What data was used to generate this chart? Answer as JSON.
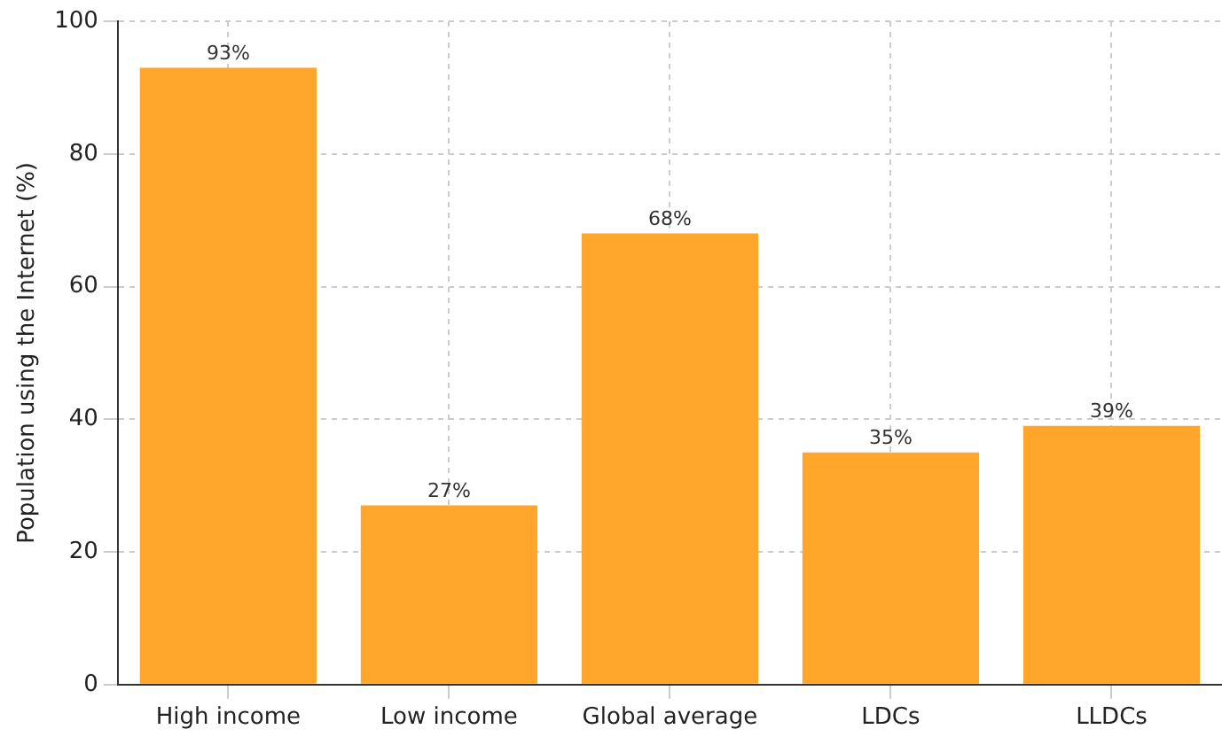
{
  "chart_data": {
    "type": "bar",
    "ylabel": "Population using the Internet (%)",
    "categories": [
      "High income",
      "Low income",
      "Global average",
      "LDCs",
      "LLDCs"
    ],
    "values": [
      93,
      27,
      68,
      35,
      39
    ],
    "value_labels": [
      "93%",
      "27%",
      "68%",
      "35%",
      "39%"
    ],
    "color": "#ffa62b",
    "ylim": [
      0,
      100
    ],
    "yticks": [
      0,
      20,
      40,
      60,
      80,
      100
    ],
    "grid": true,
    "legend": false
  }
}
